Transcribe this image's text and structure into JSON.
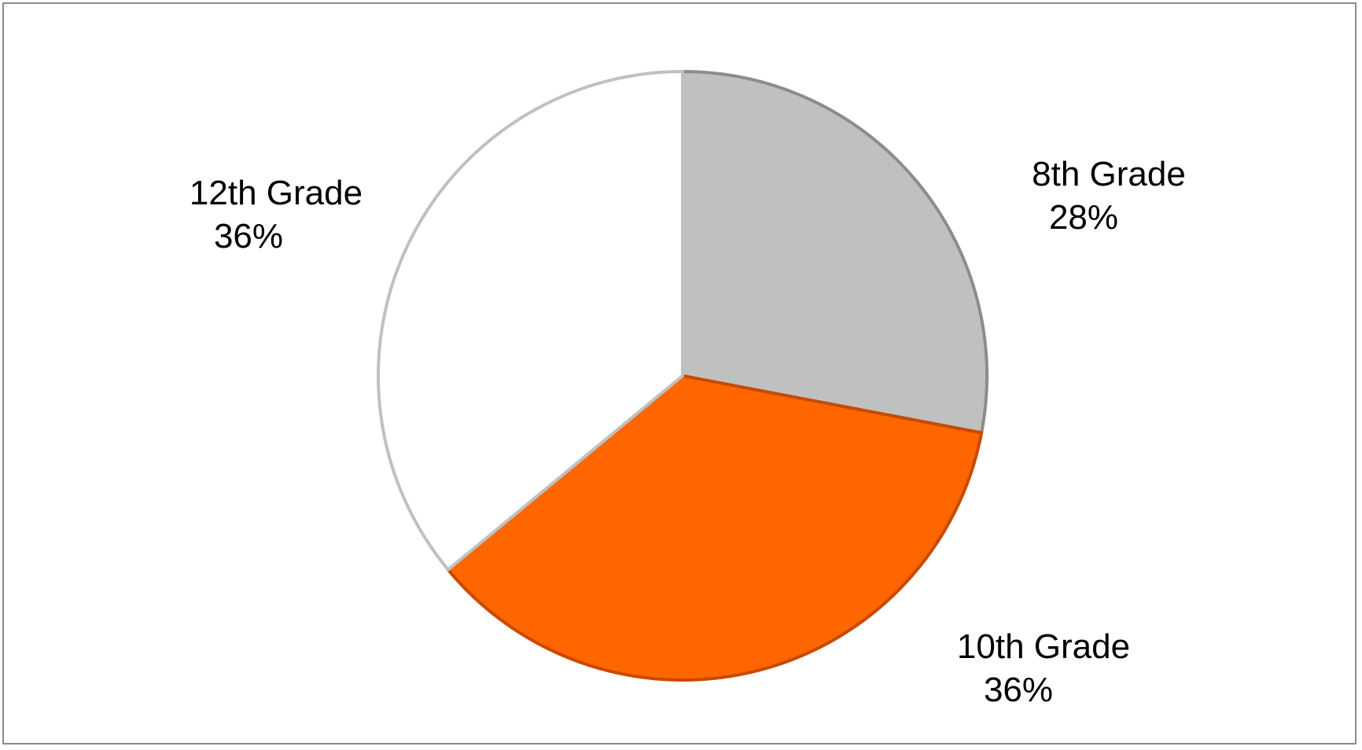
{
  "chart_data": {
    "type": "pie",
    "title": "",
    "start_angle_deg": 0,
    "direction": "clockwise",
    "slices": [
      {
        "label": "8th Grade",
        "value": 28,
        "value_label": "28%",
        "fill": "#c0c0c0",
        "stroke": "#8c8c8c"
      },
      {
        "label": "10th Grade",
        "value": 36,
        "value_label": "36%",
        "fill": "#ff6600",
        "stroke": "#c84a00"
      },
      {
        "label": "12th Grade",
        "value": 36,
        "value_label": "36%",
        "fill": "#ffffff",
        "stroke": "#c0c0c0"
      }
    ]
  }
}
